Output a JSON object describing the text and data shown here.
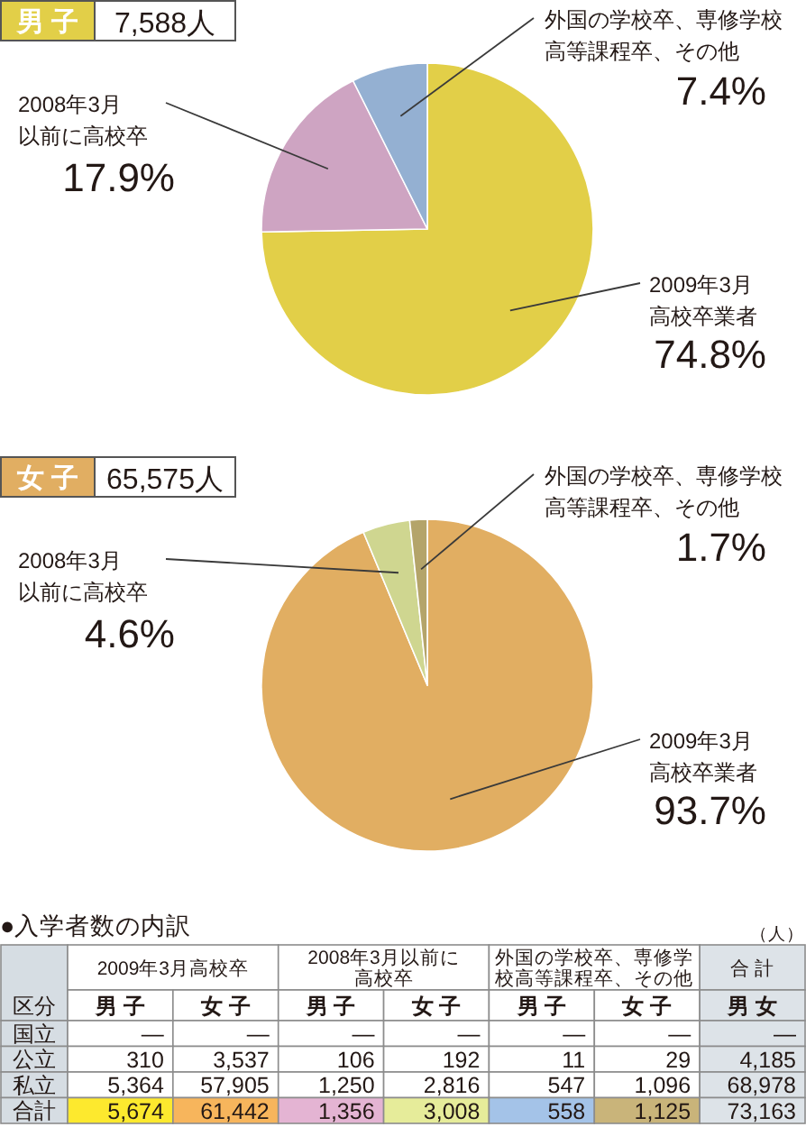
{
  "chart_data": [
    {
      "type": "pie",
      "title": "男 子",
      "subtitle": "7,588人",
      "categories": [
        "2009年3月高校卒業者",
        "2008年3月以前に高校卒",
        "外国の学校卒、専修学校高等課程卒、その他"
      ],
      "values": [
        74.8,
        17.9,
        7.4
      ],
      "value_labels": [
        "74.8%",
        "17.9%",
        "7.4%"
      ],
      "colors": [
        "#e2cf48",
        "#cea4c2",
        "#94b0d2"
      ]
    },
    {
      "type": "pie",
      "title": "女 子",
      "subtitle": "65,575人",
      "categories": [
        "2009年3月高校卒業者",
        "2008年3月以前に高校卒",
        "外国の学校卒、専修学校高等課程卒、その他"
      ],
      "values": [
        93.7,
        4.6,
        1.7
      ],
      "value_labels": [
        "93.7%",
        "4.6%",
        "1.7%"
      ],
      "colors": [
        "#e1ae62",
        "#cfd690",
        "#b4a46a"
      ]
    },
    {
      "type": "heatmap",
      "title": "●入学者数の内訳",
      "ylabel": "区分",
      "annotations": [
        "2009年3月高校卒",
        "2008年3月以前に高校卒",
        "外国の学校卒、専修学校高等課程卒、その他",
        "合 計",
        "（人）"
      ],
      "categories": [
        "男 子",
        "女 子",
        "男 子",
        "女 子",
        "男 子",
        "女 子",
        "男 女"
      ],
      "y_categories": [
        "国立",
        "公立",
        "私立",
        "合計"
      ],
      "cells": [
        [
          null,
          null,
          null,
          null,
          null,
          null,
          null
        ],
        [
          310,
          3537,
          106,
          192,
          11,
          29,
          4185
        ],
        [
          5364,
          57905,
          1250,
          2816,
          547,
          1096,
          68978
        ],
        [
          5674,
          61442,
          1356,
          3008,
          558,
          1125,
          73163
        ]
      ],
      "cell_labels": [
        [
          "—",
          "—",
          "—",
          "—",
          "—",
          "—",
          "—"
        ],
        [
          "310",
          "3,537",
          "106",
          "192",
          "11",
          "29",
          "4,185"
        ],
        [
          "5,364",
          "57,905",
          "1,250",
          "2,816",
          "547",
          "1,096",
          "68,978"
        ],
        [
          "5,674",
          "61,442",
          "1,356",
          "3,008",
          "558",
          "1,125",
          "73,163"
        ]
      ],
      "colors": [
        [
          null,
          null,
          null,
          null,
          null,
          null,
          "#dde3e8"
        ],
        [
          null,
          null,
          null,
          null,
          null,
          null,
          "#dde3e8"
        ],
        [
          null,
          null,
          null,
          null,
          null,
          null,
          "#dde3e8"
        ],
        [
          "#fde92e",
          "#f7b55c",
          "#e4b4d3",
          "#e6ec9a",
          "#a4c3e8",
          "#c9b47a",
          "#dde3e8"
        ]
      ]
    }
  ]
}
